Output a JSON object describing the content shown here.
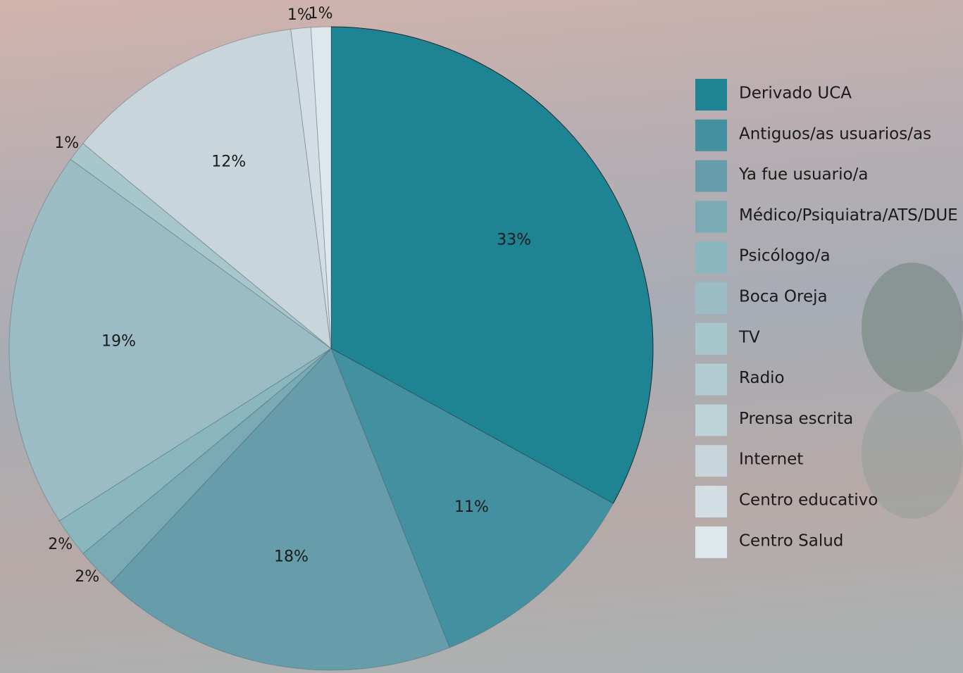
{
  "chart_data": {
    "type": "pie",
    "categories": [
      "Derivado UCA",
      "Antiguos/as usuarios/as",
      "Ya fue usuario/a",
      "Médico/Psiquiatra/ATS/DUE",
      "Psicólogo/a",
      "Boca Oreja",
      "TV",
      "Radio",
      "Prensa escrita",
      "Internet",
      "Centro educativo",
      "Centro Salud"
    ],
    "values": [
      33,
      11,
      18,
      2,
      2,
      19,
      1,
      0,
      0,
      12,
      1,
      1
    ],
    "value_labels": [
      "33%",
      "11%",
      "18%",
      "2%",
      "2%",
      "19%",
      "1%",
      null,
      null,
      "12%",
      "1%",
      "1%"
    ],
    "colors": [
      "#1e8494",
      "#4391a0",
      "#679daa",
      "#7aaab3",
      "#8ab6bf",
      "#9bbcc4",
      "#a7c7cd",
      "#b1cdd3",
      "#bcd3d8",
      "#c8d6db",
      "#d2dee3",
      "#dde7ec"
    ],
    "legend": "right"
  }
}
